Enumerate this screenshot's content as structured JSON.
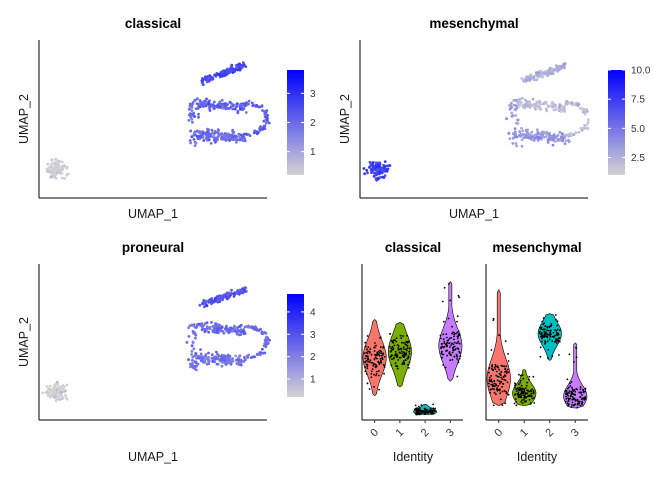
{
  "chart_data": [
    {
      "type": "scatter",
      "title": "classical",
      "xlabel": "UMAP_1",
      "ylabel": "UMAP_2",
      "color_scale": {
        "low": "#d3d3d3",
        "high": "#0000ff",
        "min": 0.2,
        "max": 3.8,
        "ticks": [
          1,
          2,
          3
        ]
      },
      "cluster_mean_values": {
        "0": 2.0,
        "1": 2.2,
        "2": 0.2,
        "3": 2.6
      }
    },
    {
      "type": "scatter",
      "title": "mesenchymal",
      "xlabel": "UMAP_1",
      "ylabel": "UMAP_2",
      "color_scale": {
        "low": "#d3d3d3",
        "high": "#0000ff",
        "min": 1.0,
        "max": 10.0,
        "ticks": [
          "2.5",
          "5.0",
          "7.5",
          "10.0"
        ]
      },
      "cluster_mean_values": {
        "0": 3.5,
        "1": 2.0,
        "2": 7.5,
        "3": 2.5
      }
    },
    {
      "type": "scatter",
      "title": "proneural",
      "xlabel": "UMAP_1",
      "ylabel": "UMAP_2",
      "color_scale": {
        "low": "#d3d3d3",
        "high": "#0000ff",
        "min": 0.2,
        "max": 4.8,
        "ticks": [
          1,
          2,
          3,
          4
        ]
      },
      "cluster_mean_values": {
        "0": 2.3,
        "1": 2.5,
        "2": 0.2,
        "3": 3.0
      }
    },
    {
      "type": "violin",
      "title": "classical",
      "xlabel": "Identity",
      "categories": [
        "0",
        "1",
        "2",
        "3"
      ],
      "colors": [
        "#F8766D",
        "#7CAE00",
        "#00BFC4",
        "#C77CFF"
      ],
      "ylim": [
        0,
        5
      ],
      "groups": [
        {
          "name": "0",
          "median": 2.0,
          "q1": 1.6,
          "q3": 2.4,
          "min": 0.7,
          "max": 3.3
        },
        {
          "name": "1",
          "median": 2.2,
          "q1": 1.8,
          "q3": 2.6,
          "min": 1.0,
          "max": 3.2
        },
        {
          "name": "2",
          "median": 0.15,
          "q1": 0.1,
          "q3": 0.25,
          "min": 0.05,
          "max": 0.4
        },
        {
          "name": "3",
          "median": 2.4,
          "q1": 2.0,
          "q3": 2.8,
          "min": 1.2,
          "max": 4.6
        }
      ]
    },
    {
      "type": "violin",
      "title": "mesenchymal",
      "xlabel": "Identity",
      "categories": [
        "0",
        "1",
        "2",
        "3"
      ],
      "colors": [
        "#F8766D",
        "#7CAE00",
        "#00BFC4",
        "#C77CFF"
      ],
      "ylim": [
        0,
        11
      ],
      "groups": [
        {
          "name": "0",
          "median": 2.8,
          "q1": 2.0,
          "q3": 4.0,
          "min": 0.8,
          "max": 9.5
        },
        {
          "name": "1",
          "median": 1.7,
          "q1": 1.2,
          "q3": 2.2,
          "min": 0.8,
          "max": 3.5
        },
        {
          "name": "2",
          "median": 6.2,
          "q1": 5.6,
          "q3": 6.8,
          "min": 4.2,
          "max": 7.7
        },
        {
          "name": "3",
          "median": 1.5,
          "q1": 1.0,
          "q3": 2.1,
          "min": 0.6,
          "max": 5.5
        }
      ]
    }
  ]
}
